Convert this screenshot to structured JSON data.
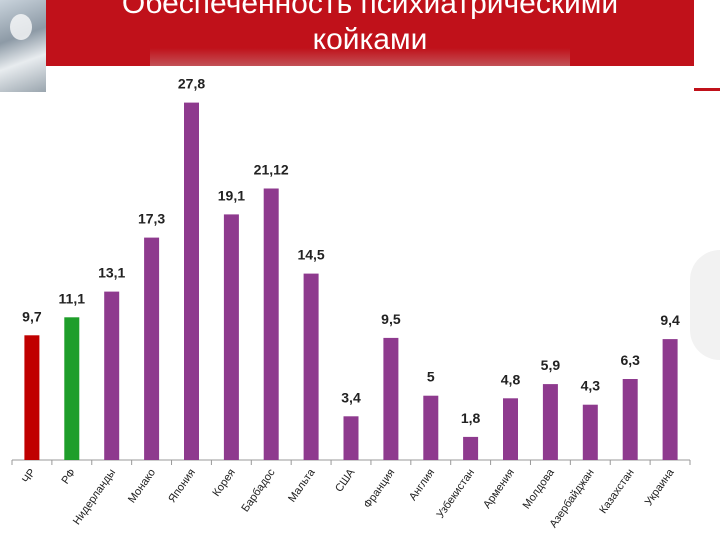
{
  "slide": {
    "title": "Обеспеченность психиатрическими\nкойками",
    "title_color": "#ffffff",
    "title_bg": "#c0111a"
  },
  "chart_data": {
    "type": "bar",
    "categories": [
      "ЧР",
      "РФ",
      "Нидерланды",
      "Монако",
      "Япония",
      "Корея",
      "Барбадос",
      "Мальта",
      "США",
      "Франция",
      "Англия",
      "Узбекистан",
      "Армения",
      "Молдова",
      "Азербайджан",
      "Казахстан",
      "Украина"
    ],
    "values": [
      9.7,
      11.1,
      13.1,
      17.3,
      27.8,
      19.1,
      21.12,
      14.5,
      3.4,
      9.5,
      5,
      1.8,
      4.8,
      5.9,
      4.3,
      6.3,
      9.4
    ],
    "value_labels": [
      "9,7",
      "11,1",
      "13,1",
      "17,3",
      "27,8",
      "19,1",
      "21,12",
      "14,5",
      "3,4",
      "9,5",
      "5",
      "1,8",
      "4,8",
      "5,9",
      "4,3",
      "6,3",
      "9,4"
    ],
    "colors": [
      "#c00000",
      "#1e9e2a",
      "#8e3a8e",
      "#8e3a8e",
      "#8e3a8e",
      "#8e3a8e",
      "#8e3a8e",
      "#8e3a8e",
      "#8e3a8e",
      "#8e3a8e",
      "#8e3a8e",
      "#8e3a8e",
      "#8e3a8e",
      "#8e3a8e",
      "#8e3a8e",
      "#8e3a8e",
      "#8e3a8e"
    ],
    "ylim": [
      0,
      28
    ],
    "grid": false,
    "legend": "none",
    "title": "",
    "xlabel": "",
    "ylabel": ""
  }
}
